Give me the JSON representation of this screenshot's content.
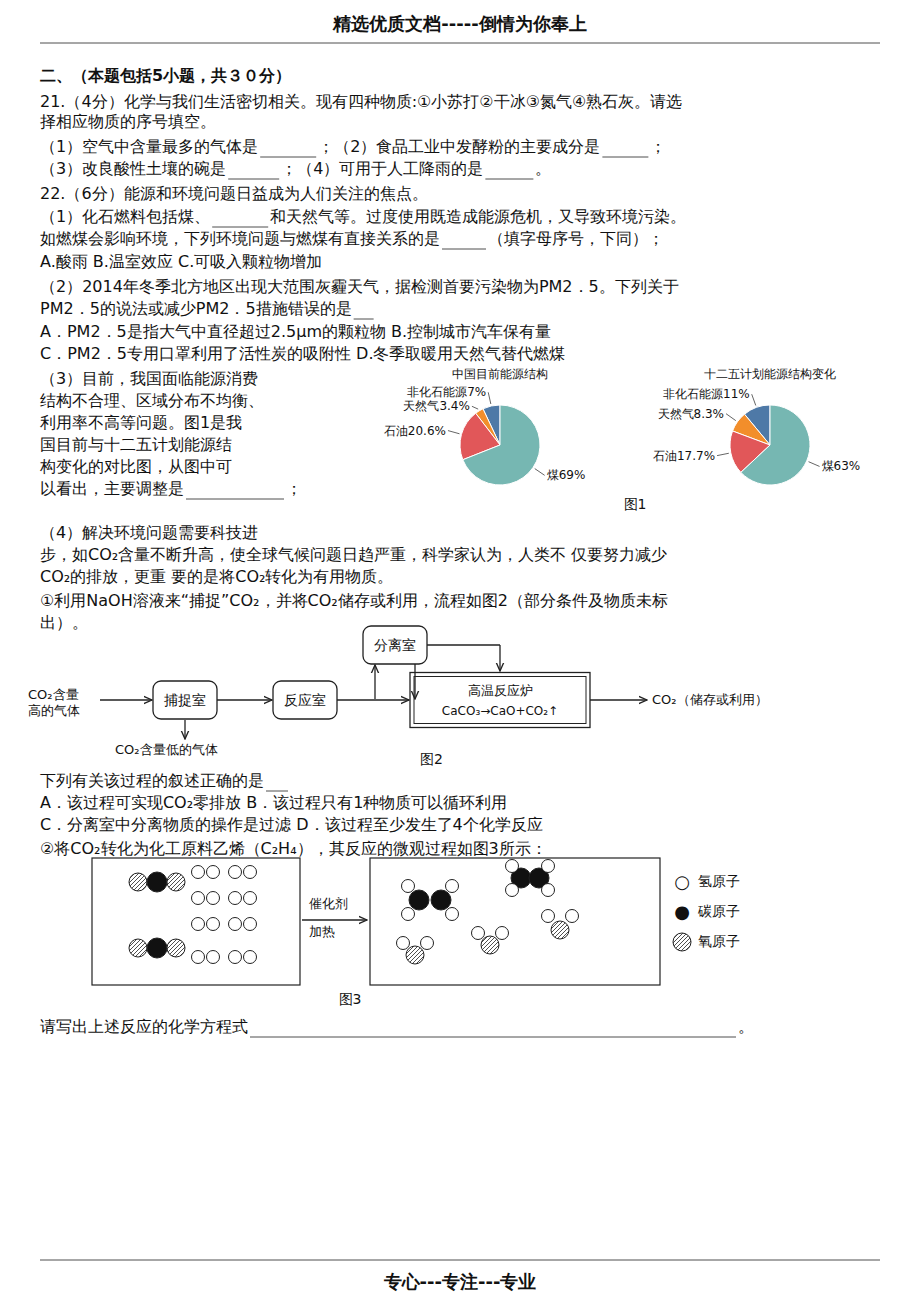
{
  "chart_data": [
    {
      "type": "pie",
      "title": "中国目前能源结构",
      "categories": [
        "非化石能源",
        "天然气",
        "石油",
        "煤"
      ],
      "values": [
        7,
        3.4,
        20.6,
        69
      ],
      "value_labels": [
        "7%",
        "3.4%",
        "20.6%",
        "69%"
      ],
      "data_labels": true,
      "annotations": [
        "精选优质文档-----倒情为你奉上",
        "二、（本题包括5小题，共３０分）",
        "21.（4分）化学与我们生活密切相关。现有四种物质:①小苏打②干冰③氮气④熟石灰。请选",
        "择相应物质的序号填空。",
        "（1）空气中含量最多的气体是",
        "；（2）食品工业中发酵粉的主要成分是",
        "；",
        "（3）改良酸性土壤的碗是",
        "；（4）可用于人工降雨的是",
        "。",
        "22.（6分）能源和环境问题日益成为人们关注的焦点。",
        "（1）化石燃料包括煤、",
        "和天然气等。过度使用既造成能源危机，又导致环境污染。",
        "如燃煤会影响环境，下列环境问题与燃煤有直接关系的是",
        "（填字母序号，下同）；",
        "A.酸雨          B.温室效应          C.可吸入颗粒物增加",
        "（2）2014年冬季北方地区出现大范围灰霾天气，据检测首要污染物为PM2．5。下列关于",
        "PM2．5的说法或减少PM2．5措施错误的是",
        "A．PM2．5是指大气中直径超过2.5μm的颗粒物        B.控制城市汽车保有量",
        "C．PM2．5专用口罩利用了活性炭的吸附性            D.冬季取暖用天然气替代燃煤",
        "（3）目前，我国面临能源消费",
        "结构不合理、区域分布不均衡、",
        "利用率不高等问题。图1是我",
        "国目前与十二五计划能源结",
        "构变化的对比图，从图中可",
        "以看出，主要调整是",
        "；",
        "图1",
        "（4）解决环境问题需要科技进",
        "步，如CO₂含量不断升高，使全球气候问题日趋严重，科学家认为，人类不   仅要努力减少",
        "CO₂的排放，更重   要的是将CO₂转化为有用物质。",
        "①利用NaOH溶液来“捕捉”CO₂，并将CO₂储存或利用，流程如图2（部分条件及物质未标",
        "出）。",
        "捕捉室",
        "反应室",
        "高温反应炉",
        "CaCO₃→CaO+CO₂↑",
        "分离室",
        "CO₂含量",
        "高的气体",
        "CO₂（储存或利用）",
        "CO₂含量低的气体",
        "图2",
        "下列有关该过程的叙述正确的是",
        "A．该过程可实现CO₂零排放        B．该过程只有1种物质可以循环利用",
        "C．分离室中分离物质的操作是过滤    D．该过程至少发生了4个化学反应",
        "②将CO₂转化为化工原料乙烯（C₂H₄），其反应的微观过程如图3所示：",
        "催化剂",
        "加热",
        "氢原子",
        "碳原子",
        "氧原子",
        "○",
        "●",
        "图3",
        "请写出上述反应的化学方程式",
        "。",
        "专心---专注---专业"
      ]
    },
    {
      "type": "pie",
      "title": "十二五计划能源结构变化",
      "categories": [
        "非化石能源",
        "天然气",
        "石油",
        "煤"
      ],
      "values": [
        11,
        8.3,
        17.7,
        63
      ],
      "value_labels": [
        "11%",
        "8.3%",
        "17.7%",
        "63%"
      ],
      "data_labels": true
    }
  ]
}
